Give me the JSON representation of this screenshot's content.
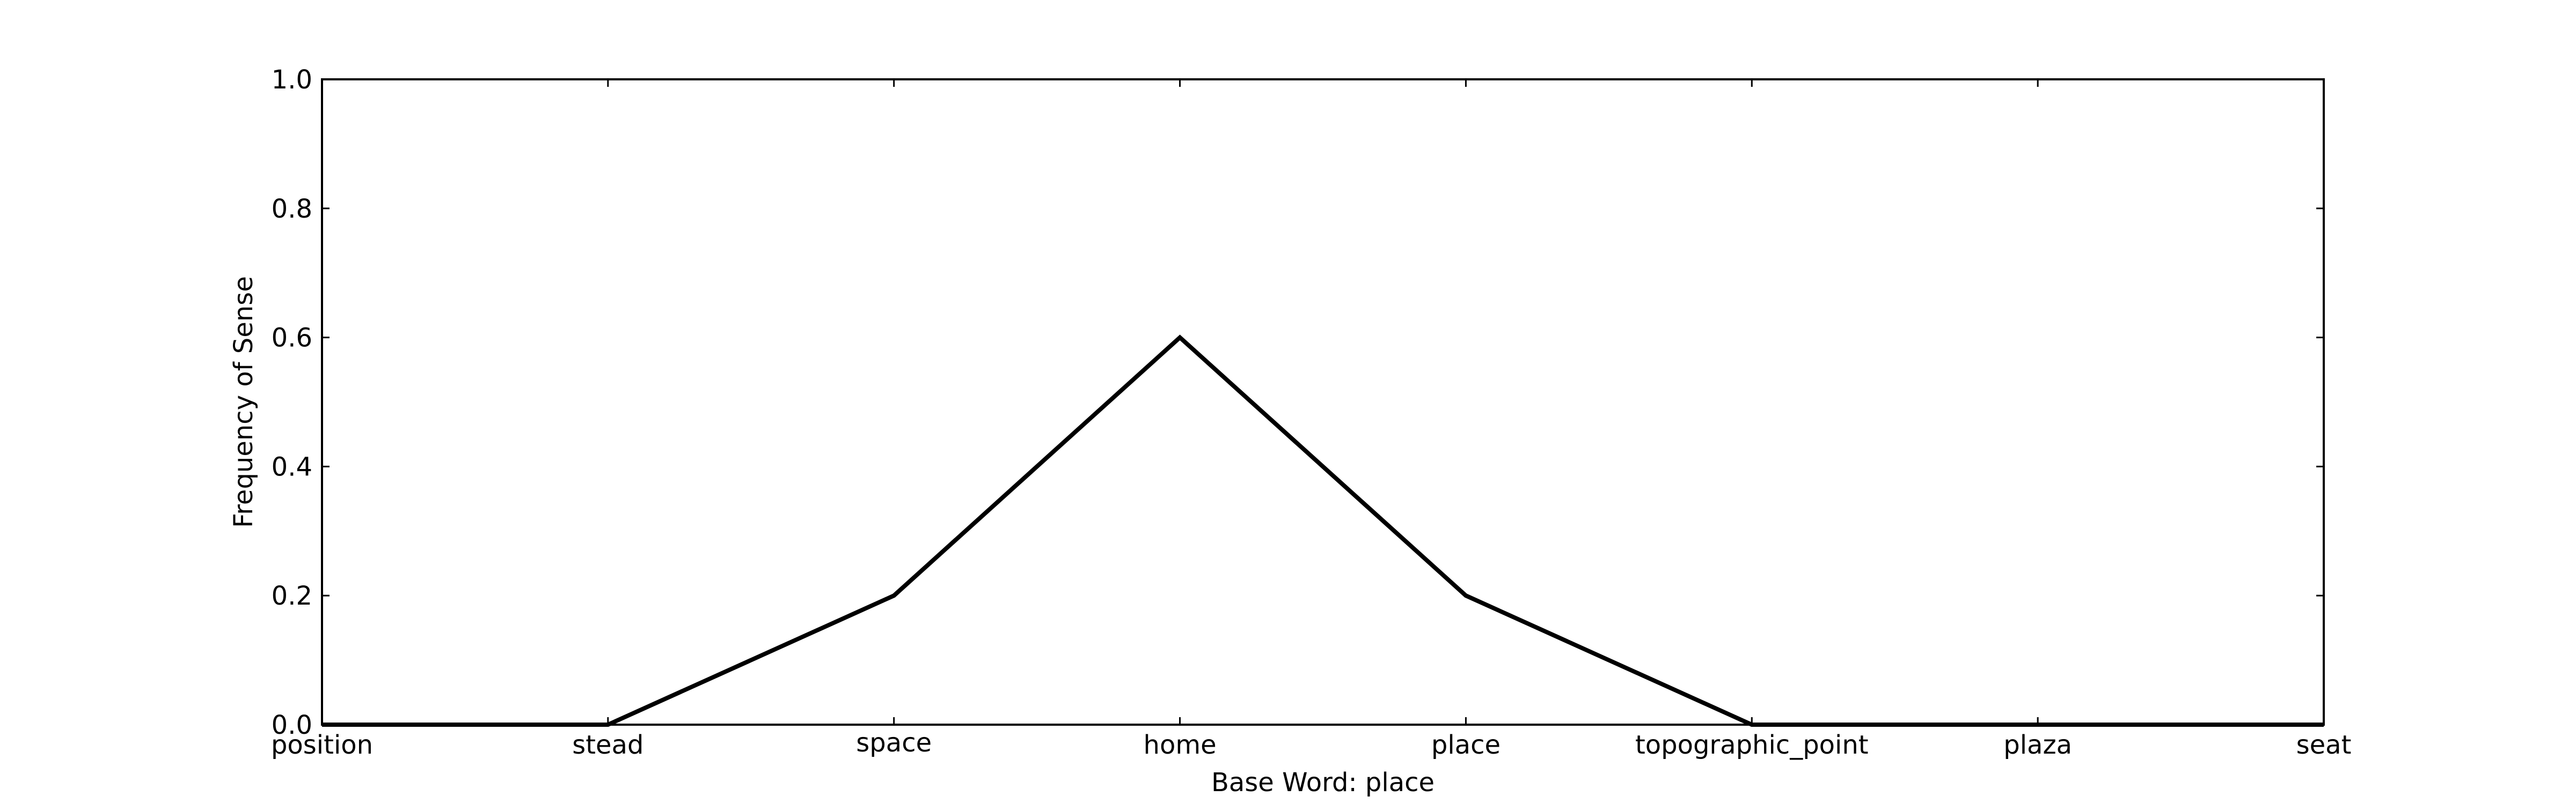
{
  "chart_data": {
    "type": "line",
    "xlabel": "Base Word: place",
    "ylabel": "Frequency of Sense",
    "categories": [
      "position",
      "stead",
      "space",
      "home",
      "place",
      "topographic_point",
      "plaza",
      "seat"
    ],
    "series": [
      {
        "values": [
          0.0,
          0.0,
          0.2,
          0.6,
          0.2,
          0.0,
          0.0,
          0.0
        ]
      }
    ],
    "ylim": [
      0.0,
      1.0
    ],
    "yticks": [
      "0.0",
      "0.2",
      "0.4",
      "0.6",
      "0.8",
      "1.0"
    ],
    "grid": false,
    "line_color": "#000000"
  }
}
